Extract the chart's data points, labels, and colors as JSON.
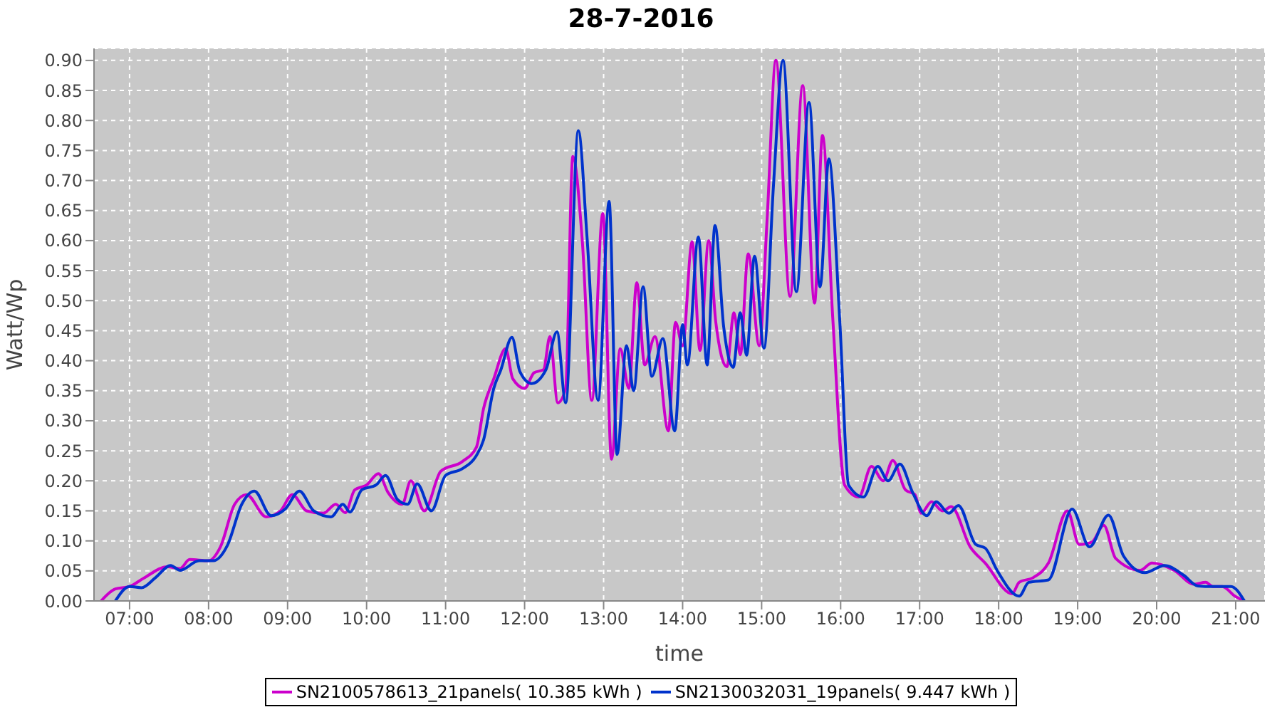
{
  "chart_data": {
    "type": "line",
    "title": "28-7-2016",
    "xlabel": "time",
    "ylabel": "Watt/Wp",
    "xlim": [
      6.55,
      21.37
    ],
    "xticks": [
      {
        "value": 7,
        "label": "07:00"
      },
      {
        "value": 8,
        "label": "08:00"
      },
      {
        "value": 9,
        "label": "09:00"
      },
      {
        "value": 10,
        "label": "10:00"
      },
      {
        "value": 11,
        "label": "11:00"
      },
      {
        "value": 12,
        "label": "12:00"
      },
      {
        "value": 13,
        "label": "13:00"
      },
      {
        "value": 14,
        "label": "14:00"
      },
      {
        "value": 15,
        "label": "15:00"
      },
      {
        "value": 16,
        "label": "16:00"
      },
      {
        "value": 17,
        "label": "17:00"
      },
      {
        "value": 18,
        "label": "18:00"
      },
      {
        "value": 19,
        "label": "19:00"
      },
      {
        "value": 20,
        "label": "20:00"
      },
      {
        "value": 21,
        "label": "21:00"
      }
    ],
    "ylim": [
      0,
      0.92
    ],
    "yticks": [
      {
        "value": 0,
        "label": "0.00"
      },
      {
        "value": 0.05,
        "label": "0.05"
      },
      {
        "value": 0.1,
        "label": "0.10"
      },
      {
        "value": 0.15,
        "label": "0.15"
      },
      {
        "value": 0.2,
        "label": "0.20"
      },
      {
        "value": 0.25,
        "label": "0.25"
      },
      {
        "value": 0.3,
        "label": "0.30"
      },
      {
        "value": 0.35,
        "label": "0.35"
      },
      {
        "value": 0.4,
        "label": "0.40"
      },
      {
        "value": 0.45,
        "label": "0.45"
      },
      {
        "value": 0.5,
        "label": "0.50"
      },
      {
        "value": 0.55,
        "label": "0.55"
      },
      {
        "value": 0.6,
        "label": "0.60"
      },
      {
        "value": 0.65,
        "label": "0.65"
      },
      {
        "value": 0.7,
        "label": "0.70"
      },
      {
        "value": 0.75,
        "label": "0.75"
      },
      {
        "value": 0.8,
        "label": "0.80"
      },
      {
        "value": 0.85,
        "label": "0.85"
      },
      {
        "value": 0.9,
        "label": "0.90"
      }
    ],
    "grid": true,
    "legend": "bottom",
    "line_style": "solid",
    "series": [
      {
        "name": "SN2100578613_21panels( 10.385 kWh )",
        "color": "#cc00cc",
        "x": [
          6.64,
          6.82,
          7.0,
          7.18,
          7.48,
          7.64,
          7.76,
          8.0,
          8.15,
          8.33,
          8.48,
          8.73,
          8.91,
          9.06,
          9.24,
          9.45,
          9.61,
          9.73,
          9.85,
          10.0,
          10.15,
          10.27,
          10.45,
          10.56,
          10.73,
          10.94,
          11.21,
          11.39,
          11.48,
          11.61,
          11.76,
          11.85,
          12.0,
          12.12,
          12.24,
          12.32,
          12.42,
          12.52,
          12.61,
          12.73,
          12.85,
          12.99,
          13.1,
          13.21,
          13.32,
          13.42,
          13.52,
          13.65,
          13.82,
          13.91,
          14.0,
          14.12,
          14.22,
          14.33,
          14.42,
          14.56,
          14.65,
          14.73,
          14.83,
          14.97,
          15.07,
          15.18,
          15.36,
          15.52,
          15.67,
          15.77,
          15.9,
          16.05,
          16.23,
          16.39,
          16.54,
          16.66,
          16.82,
          16.94,
          17.02,
          17.15,
          17.29,
          17.4,
          17.64,
          17.83,
          18.17,
          18.26,
          18.44,
          18.63,
          18.87,
          19.02,
          19.18,
          19.33,
          19.48,
          19.79,
          19.94,
          20.22,
          20.47,
          20.62,
          20.71,
          20.83,
          20.99,
          21.11
        ],
        "values": [
          0.0,
          0.02,
          0.024,
          0.038,
          0.057,
          0.054,
          0.069,
          0.067,
          0.09,
          0.161,
          0.177,
          0.14,
          0.15,
          0.177,
          0.15,
          0.146,
          0.161,
          0.147,
          0.185,
          0.193,
          0.212,
          0.181,
          0.161,
          0.2,
          0.15,
          0.216,
          0.232,
          0.256,
          0.32,
          0.37,
          0.42,
          0.37,
          0.354,
          0.38,
          0.385,
          0.44,
          0.33,
          0.354,
          0.74,
          0.6,
          0.334,
          0.645,
          0.236,
          0.42,
          0.354,
          0.53,
          0.393,
          0.44,
          0.283,
          0.464,
          0.425,
          0.598,
          0.417,
          0.6,
          0.464,
          0.39,
          0.48,
          0.41,
          0.578,
          0.425,
          0.637,
          0.9,
          0.507,
          0.858,
          0.496,
          0.775,
          0.472,
          0.193,
          0.173,
          0.224,
          0.2,
          0.234,
          0.185,
          0.177,
          0.146,
          0.165,
          0.15,
          0.157,
          0.09,
          0.063,
          0.012,
          0.031,
          0.039,
          0.063,
          0.15,
          0.094,
          0.098,
          0.126,
          0.071,
          0.051,
          0.063,
          0.051,
          0.028,
          0.031,
          0.024,
          0.024,
          0.008,
          0.0
        ]
      },
      {
        "name": "SN2130032031_19panels( 9.447 kWh )",
        "color": "#0033cc",
        "x": [
          6.82,
          7.0,
          7.15,
          7.33,
          7.52,
          7.64,
          7.88,
          8.06,
          8.24,
          8.42,
          8.58,
          8.79,
          8.97,
          9.15,
          9.33,
          9.55,
          9.7,
          9.79,
          9.94,
          10.12,
          10.24,
          10.39,
          10.52,
          10.64,
          10.82,
          11.0,
          11.21,
          11.38,
          11.48,
          11.61,
          11.7,
          11.84,
          11.94,
          12.09,
          12.27,
          12.41,
          12.52,
          12.68,
          12.79,
          12.93,
          13.07,
          13.17,
          13.29,
          13.38,
          13.5,
          13.61,
          13.75,
          13.9,
          14.0,
          14.06,
          14.2,
          14.31,
          14.41,
          14.52,
          14.64,
          14.73,
          14.81,
          14.91,
          15.03,
          15.15,
          15.27,
          15.44,
          15.6,
          15.74,
          15.85,
          15.99,
          16.1,
          16.29,
          16.47,
          16.6,
          16.75,
          16.91,
          17.09,
          17.21,
          17.37,
          17.49,
          17.71,
          17.83,
          17.98,
          18.26,
          18.38,
          18.63,
          18.93,
          19.15,
          19.39,
          19.58,
          19.85,
          20.1,
          20.34,
          20.52,
          20.71,
          20.94,
          21.11
        ],
        "values": [
          0.0,
          0.024,
          0.022,
          0.039,
          0.059,
          0.051,
          0.067,
          0.067,
          0.093,
          0.161,
          0.183,
          0.142,
          0.153,
          0.183,
          0.15,
          0.14,
          0.161,
          0.148,
          0.185,
          0.193,
          0.209,
          0.169,
          0.161,
          0.195,
          0.15,
          0.209,
          0.22,
          0.24,
          0.268,
          0.354,
          0.385,
          0.439,
          0.382,
          0.362,
          0.385,
          0.448,
          0.33,
          0.783,
          0.606,
          0.334,
          0.665,
          0.244,
          0.425,
          0.35,
          0.523,
          0.374,
          0.437,
          0.283,
          0.46,
          0.393,
          0.606,
          0.393,
          0.625,
          0.456,
          0.389,
          0.48,
          0.409,
          0.574,
          0.421,
          0.692,
          0.9,
          0.515,
          0.83,
          0.523,
          0.736,
          0.464,
          0.193,
          0.173,
          0.224,
          0.2,
          0.228,
          0.181,
          0.142,
          0.165,
          0.146,
          0.159,
          0.094,
          0.088,
          0.051,
          0.008,
          0.031,
          0.035,
          0.153,
          0.09,
          0.143,
          0.075,
          0.047,
          0.059,
          0.043,
          0.025,
          0.024,
          0.024,
          0.0
        ]
      }
    ]
  }
}
